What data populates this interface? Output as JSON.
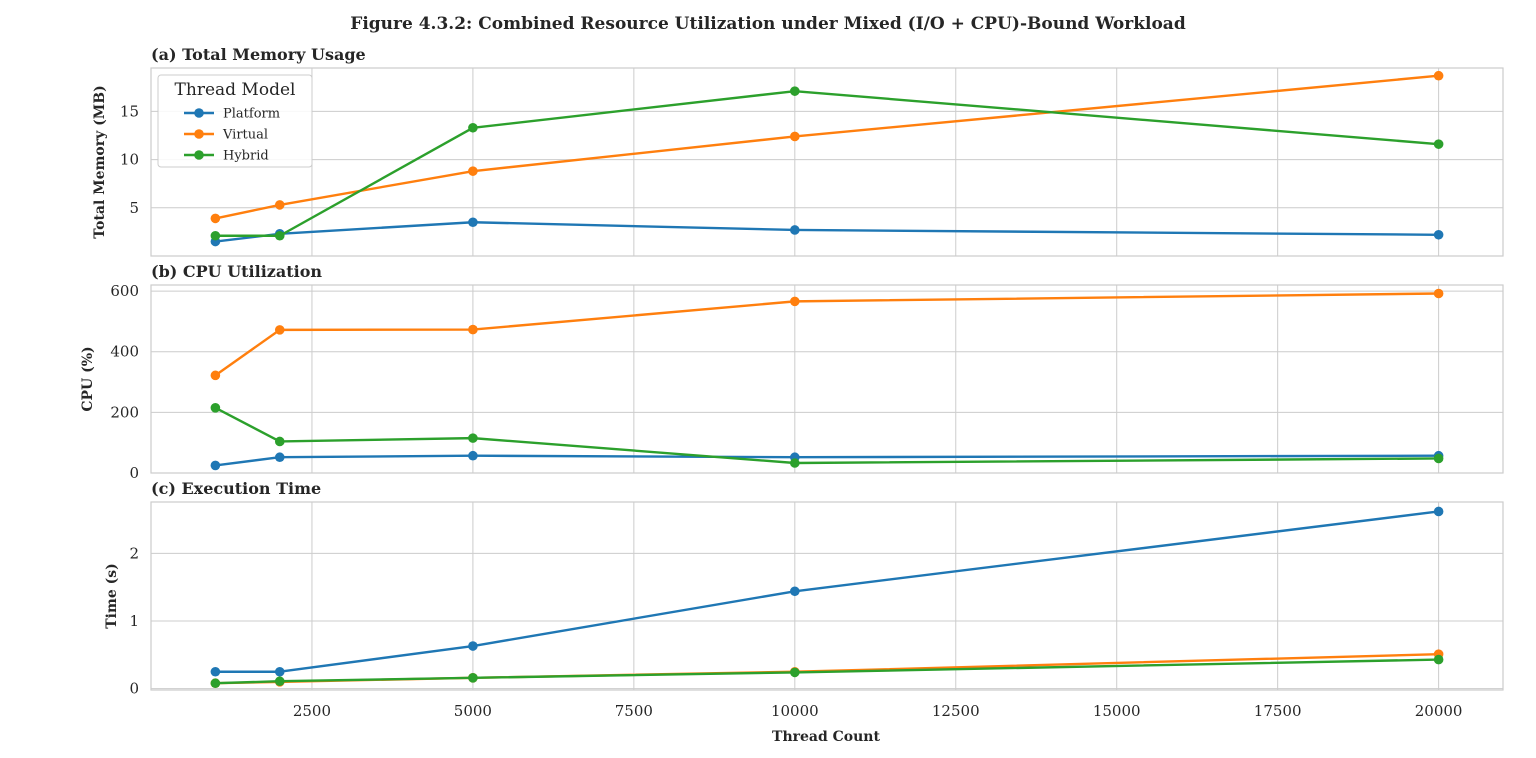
{
  "figure": {
    "title": "Figure 4.3.2: Combined Resource Utilization under Mixed (I/O + CPU)-Bound Workload",
    "xlabel": "Thread Count"
  },
  "colors": {
    "Platform": "#1f77b4",
    "Virtual": "#ff7f0e",
    "Hybrid": "#2ca02c",
    "grid": "#cccccc",
    "frame": "#cccccc"
  },
  "legend": {
    "title": "Thread Model",
    "items": [
      "Platform",
      "Virtual",
      "Hybrid"
    ],
    "placement": "upper-left of panel (a)"
  },
  "chart_data": [
    {
      "type": "line",
      "title": "(a) Total Memory Usage",
      "ylabel": "Total Memory (MB)",
      "x": [
        1000,
        2000,
        5000,
        10000,
        20000
      ],
      "xlim": [
        0,
        21000
      ],
      "ylim": [
        0,
        19.5
      ],
      "yticks": [
        5,
        10,
        15
      ],
      "xticks": [
        2500,
        5000,
        7500,
        10000,
        12500,
        15000,
        17500,
        20000
      ],
      "grid": true,
      "series": [
        {
          "name": "Platform",
          "values": [
            1.5,
            2.3,
            3.5,
            2.7,
            2.2
          ]
        },
        {
          "name": "Virtual",
          "values": [
            3.9,
            5.3,
            8.8,
            12.4,
            18.7
          ]
        },
        {
          "name": "Hybrid",
          "values": [
            2.1,
            2.1,
            13.3,
            17.1,
            11.6
          ]
        }
      ]
    },
    {
      "type": "line",
      "title": "(b) CPU Utilization",
      "ylabel": "CPU (%)",
      "x": [
        1000,
        2000,
        5000,
        10000,
        20000
      ],
      "xlim": [
        0,
        21000
      ],
      "ylim": [
        0,
        620
      ],
      "yticks": [
        0,
        200,
        400,
        600
      ],
      "xticks": [
        2500,
        5000,
        7500,
        10000,
        12500,
        15000,
        17500,
        20000
      ],
      "grid": true,
      "series": [
        {
          "name": "Platform",
          "values": [
            25,
            52,
            57,
            52,
            57
          ]
        },
        {
          "name": "Virtual",
          "values": [
            322,
            472,
            473,
            566,
            592
          ]
        },
        {
          "name": "Hybrid",
          "values": [
            215,
            104,
            115,
            33,
            48
          ]
        }
      ]
    },
    {
      "type": "line",
      "title": "(c) Execution Time",
      "ylabel": "Time (s)",
      "x": [
        1000,
        2000,
        5000,
        10000,
        20000
      ],
      "xlim": [
        0,
        21000
      ],
      "ylim": [
        -0.02,
        2.76
      ],
      "yticks": [
        0,
        1,
        2
      ],
      "xticks": [
        2500,
        5000,
        7500,
        10000,
        12500,
        15000,
        17500,
        20000
      ],
      "grid": true,
      "series": [
        {
          "name": "Platform",
          "values": [
            0.25,
            0.25,
            0.63,
            1.44,
            2.62
          ]
        },
        {
          "name": "Virtual",
          "values": [
            0.08,
            0.1,
            0.16,
            0.25,
            0.51
          ]
        },
        {
          "name": "Hybrid",
          "values": [
            0.08,
            0.11,
            0.16,
            0.24,
            0.43
          ]
        }
      ]
    }
  ]
}
